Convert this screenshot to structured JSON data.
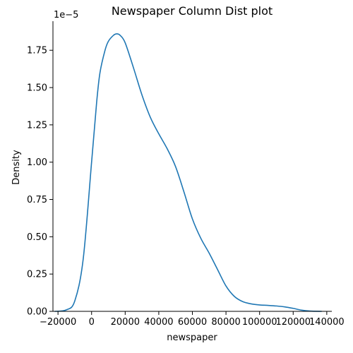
{
  "chart_data": {
    "type": "line",
    "title": "Newspaper Column Dist plot",
    "xlabel": "newspaper",
    "ylabel": "Density",
    "y_offset_text": "1e−5",
    "xlim": [
      -23000,
      143000
    ],
    "ylim": [
      0,
      1.945
    ],
    "x_ticks": [
      -20000,
      0,
      20000,
      40000,
      60000,
      80000,
      100000,
      120000,
      140000
    ],
    "x_tick_labels": [
      "−20000",
      "0",
      "20000",
      "40000",
      "60000",
      "80000",
      "100000",
      "120000",
      "140000"
    ],
    "y_ticks": [
      0,
      0.25,
      0.5,
      0.75,
      1.0,
      1.25,
      1.5,
      1.75
    ],
    "y_tick_labels": [
      "0.00",
      "0.25",
      "0.50",
      "0.75",
      "1.00",
      "1.25",
      "1.50",
      "1.75"
    ],
    "grid": false,
    "series": [
      {
        "color": "#1f77b4",
        "x": [
          -22000,
          -15000,
          -10000,
          -5000,
          0,
          3000,
          5000,
          8000,
          10000,
          13000,
          15000,
          17000,
          20000,
          25000,
          30000,
          35000,
          40000,
          45000,
          50000,
          55000,
          60000,
          65000,
          70000,
          75000,
          80000,
          85000,
          90000,
          95000,
          100000,
          105000,
          110000,
          115000,
          120000,
          125000,
          130000,
          137000
        ],
        "y": [
          0.0,
          0.01,
          0.07,
          0.35,
          1.0,
          1.4,
          1.6,
          1.75,
          1.81,
          1.85,
          1.86,
          1.85,
          1.8,
          1.63,
          1.45,
          1.3,
          1.19,
          1.09,
          0.97,
          0.8,
          0.62,
          0.49,
          0.39,
          0.28,
          0.17,
          0.1,
          0.065,
          0.05,
          0.043,
          0.04,
          0.036,
          0.03,
          0.02,
          0.008,
          0.002,
          0.0
        ]
      }
    ]
  }
}
